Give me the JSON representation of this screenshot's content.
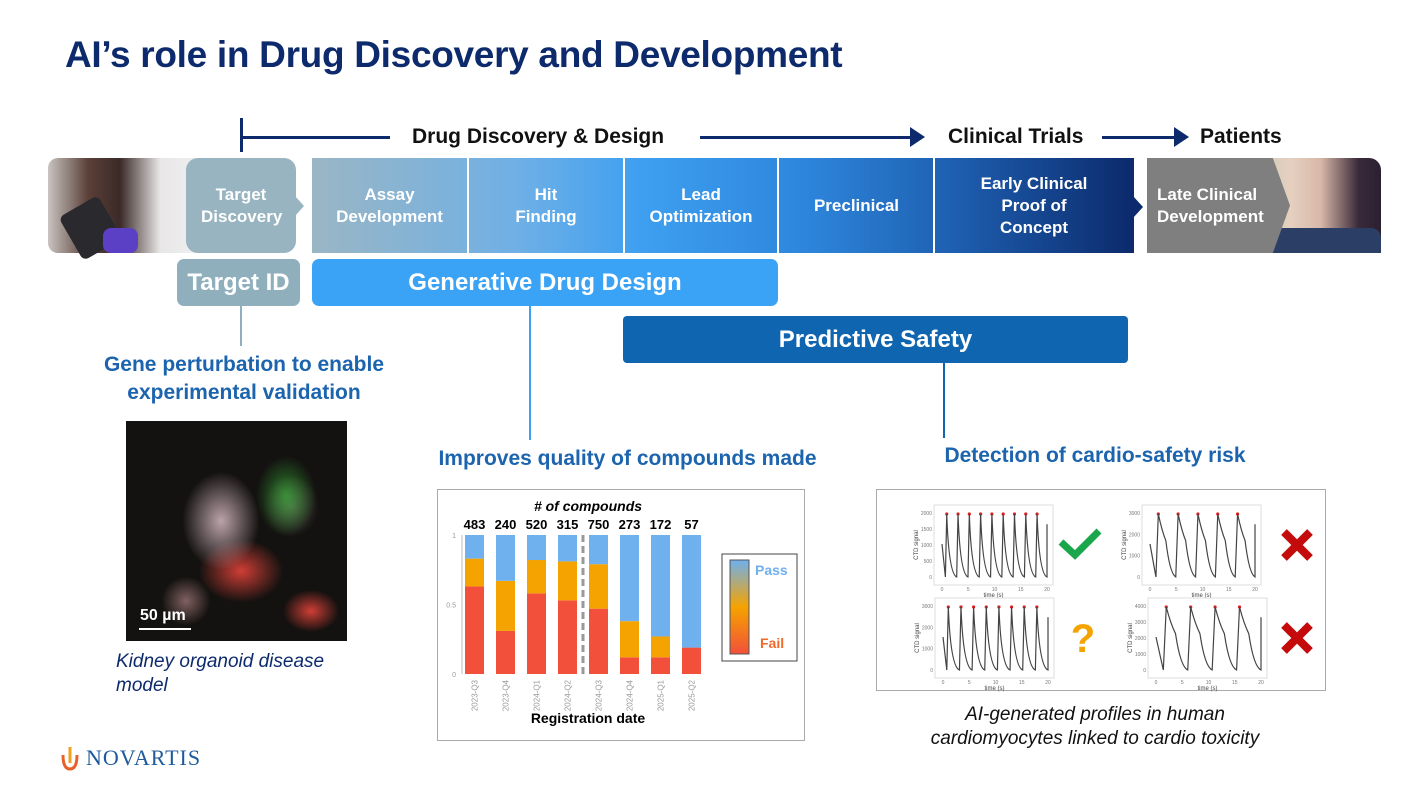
{
  "title": "AI’s role in Drug Discovery and Development",
  "phases": {
    "discovery": "Drug Discovery & Design",
    "clinical": "Clinical Trials",
    "patients": "Patients"
  },
  "stages": [
    {
      "label": "Target Discovery"
    },
    {
      "label": "Assay Development"
    },
    {
      "label": "Hit Finding"
    },
    {
      "label": "Lead Optimization"
    },
    {
      "label": "Preclinical"
    },
    {
      "label": "Early Clinical Proof of Concept"
    },
    {
      "label": "Late Clinical Development"
    }
  ],
  "ai_areas": {
    "target_id": "Target ID",
    "generative": "Generative Drug Design",
    "predictive": "Predictive Safety"
  },
  "outcomes": {
    "target": {
      "heading": "Gene perturbation to enable experimental validation",
      "scale_bar": "50 µm",
      "caption": "Kidney organoid disease model"
    },
    "generative": {
      "heading": "Improves quality of compounds made"
    },
    "safety": {
      "heading": "Detection of cardio-safety risk",
      "caption": "AI-generated profiles in human cardiomyocytes linked to cardio toxicity"
    }
  },
  "colors": {
    "navy": "#0c2a6c",
    "accent_blue": "#1c64ae",
    "pass": "#6fb0ee",
    "mid": "#f5a300",
    "fail": "#f2503a",
    "check": "#1aa64a",
    "cross": "#c40a0a",
    "question": "#f5a300"
  },
  "chart_data": {
    "type": "bar",
    "stacked": true,
    "title": "# of compounds",
    "xlabel": "Registration date",
    "ylabel": "",
    "ylim": [
      0,
      1
    ],
    "yticks": [
      "0",
      "0.5",
      "1"
    ],
    "categories": [
      "2023-Q3",
      "2023-Q4",
      "2024-Q1",
      "2024-Q2",
      "2024-Q3",
      "2024-Q4",
      "2025-Q1",
      "2025-Q2"
    ],
    "counts": [
      "483",
      "240",
      "520",
      "315",
      "750",
      "273",
      "172",
      "57"
    ],
    "series": [
      {
        "name": "Fail",
        "values": [
          0.63,
          0.31,
          0.58,
          0.53,
          0.47,
          0.12,
          0.12,
          0.19
        ]
      },
      {
        "values": [
          0.2,
          0.36,
          0.24,
          0.28,
          0.32,
          0.26,
          0.15,
          0.0
        ]
      },
      {
        "name": "Pass",
        "values": [
          0.17,
          0.33,
          0.18,
          0.19,
          0.21,
          0.62,
          0.73,
          0.81
        ]
      }
    ],
    "divider_after": "2024-Q2",
    "legend": {
      "placement": "right",
      "top": "Pass",
      "bottom": "Fail"
    }
  },
  "cardio_plots": [
    {
      "ylabel": "CTD signal",
      "xlabel": "time (s)",
      "yticks": [
        "0",
        "500",
        "1000",
        "1500",
        "2000"
      ],
      "xticks": [
        "0",
        "5",
        "10",
        "15",
        "20"
      ],
      "beats": 9,
      "verdict": "check-icon"
    },
    {
      "ylabel": "CTD signal",
      "xlabel": "time (s)",
      "yticks": [
        "0",
        "1000",
        "2000",
        "3000"
      ],
      "xticks": [
        "0",
        "5",
        "10",
        "15",
        "20"
      ],
      "beats": 5,
      "verdict": "cross-icon"
    },
    {
      "ylabel": "CTD signal",
      "xlabel": "time (s)",
      "yticks": [
        "0",
        "1000",
        "2000",
        "3000"
      ],
      "xticks": [
        "0",
        "5",
        "10",
        "15",
        "20"
      ],
      "beats": 8,
      "verdict": "question-icon"
    },
    {
      "ylabel": "CTD signal",
      "xlabel": "time (s)",
      "yticks": [
        "0",
        "1000",
        "2000",
        "3000",
        "4000"
      ],
      "xticks": [
        "0",
        "5",
        "10",
        "15",
        "20"
      ],
      "beats": 4,
      "verdict": "cross-icon"
    }
  ],
  "logo": {
    "text": "NOVARTIS"
  }
}
